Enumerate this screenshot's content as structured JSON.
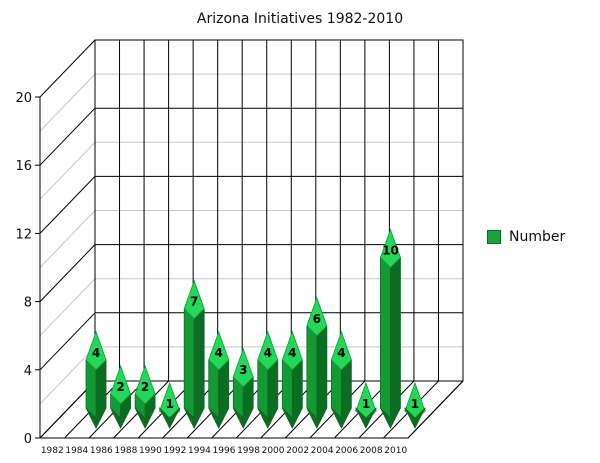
{
  "chart_data": {
    "type": "bar",
    "title": "Arizona Initiatives 1982-2010",
    "categories": [
      "1982",
      "1984",
      "1986",
      "1988",
      "1990",
      "1992",
      "1994",
      "1996",
      "1998",
      "2000",
      "2002",
      "2004",
      "2006",
      "2008",
      "2010"
    ],
    "series": [
      {
        "name": "Number",
        "values": [
          0,
          4,
          2,
          2,
          1,
          7,
          4,
          3,
          4,
          4,
          6,
          4,
          1,
          10,
          1
        ]
      }
    ],
    "data_labels": [
      "",
      "4",
      "2",
      "2",
      "1",
      "7",
      "4",
      "3",
      "4",
      "4",
      "6",
      "4",
      "1",
      "10",
      "1"
    ],
    "ylim": [
      0,
      20
    ],
    "yticks": [
      0,
      4,
      8,
      12,
      16,
      20
    ],
    "grid": true,
    "legend_position": "right",
    "colors": {
      "bar_light": "#22d75a",
      "bar_mid": "#139a34",
      "bar_dark": "#0b6d22",
      "legend": "#1aa33a"
    }
  }
}
